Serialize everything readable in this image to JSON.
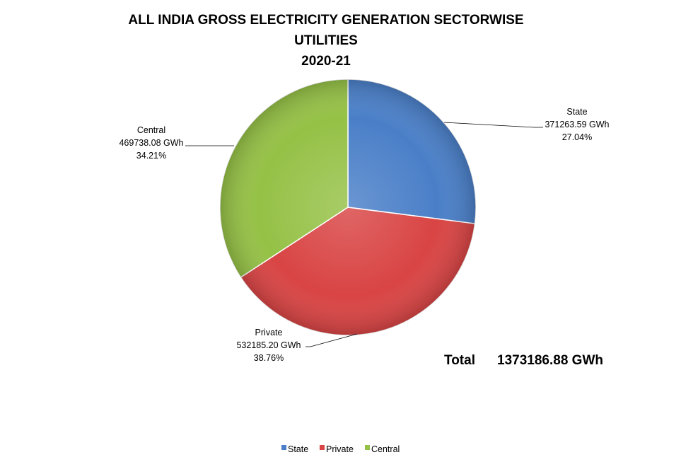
{
  "chart_data": {
    "type": "pie",
    "title_lines": [
      "ALL INDIA GROSS ELECTRICITY GENERATION SECTORWISE",
      "UTILITIES",
      "2020-21"
    ],
    "categories": [
      "State",
      "Private",
      "Central"
    ],
    "values": [
      371263.59,
      532185.2,
      469738.08
    ],
    "value_labels": [
      "371263.59 GWh",
      "532185.20 GWh",
      "469738.08 GWh"
    ],
    "percent_labels": [
      "27.04%",
      "38.76%",
      "34.21%"
    ],
    "colors": [
      "#4a7fc8",
      "#d94444",
      "#95c146"
    ],
    "total": {
      "label": "Total",
      "value": "1373186.88 GWh"
    },
    "legend": {
      "position": "bottom",
      "entries": [
        "State",
        "Private",
        "Central"
      ]
    }
  }
}
